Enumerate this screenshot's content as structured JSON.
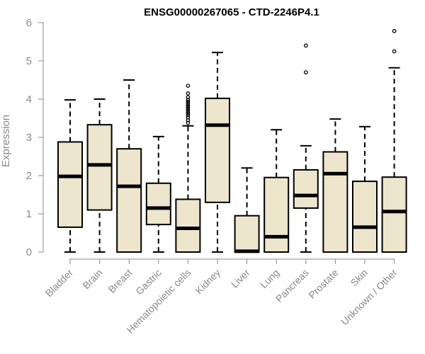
{
  "chart_data": {
    "type": "boxplot",
    "title": "ENSG00000267065 - CTD-2246P4.1",
    "xlabel": "",
    "ylabel": "Expression",
    "ylim": [
      0,
      6
    ],
    "yticks": [
      0,
      1,
      2,
      3,
      4,
      5,
      6
    ],
    "box_fill": "#ede6cc",
    "categories": [
      "Bladder",
      "Brain",
      "Breast",
      "Gastric",
      "Hematopoietic cells",
      "Kidney",
      "Liver",
      "Lung",
      "Pancreas",
      "Prostate",
      "Skin",
      "Unknown / Other"
    ],
    "boxes": [
      {
        "name": "Bladder",
        "whisker_low": 0,
        "q1": 0.65,
        "median": 1.98,
        "q3": 2.88,
        "whisker_high": 3.98,
        "outliers": []
      },
      {
        "name": "Brain",
        "whisker_low": 0,
        "q1": 1.1,
        "median": 2.28,
        "q3": 3.33,
        "whisker_high": 4.0,
        "outliers": []
      },
      {
        "name": "Breast",
        "whisker_low": 0,
        "q1": 0,
        "median": 1.72,
        "q3": 2.7,
        "whisker_high": 4.5,
        "outliers": []
      },
      {
        "name": "Gastric",
        "whisker_low": 0,
        "q1": 0.72,
        "median": 1.15,
        "q3": 1.8,
        "whisker_high": 3.02,
        "outliers": []
      },
      {
        "name": "Hematopoietic cells",
        "whisker_low": 0,
        "q1": 0,
        "median": 0.62,
        "q3": 1.38,
        "whisker_high": 3.3,
        "outliers": [
          3.38,
          3.45,
          3.52,
          3.58,
          3.63,
          3.68,
          3.73,
          3.78,
          3.83,
          3.88,
          3.93,
          3.98,
          4.05,
          4.15,
          4.35
        ]
      },
      {
        "name": "Kidney",
        "whisker_low": 0,
        "q1": 1.3,
        "median": 3.32,
        "q3": 4.02,
        "whisker_high": 5.22,
        "outliers": []
      },
      {
        "name": "Liver",
        "whisker_low": 0,
        "q1": 0,
        "median": 0.02,
        "q3": 0.95,
        "whisker_high": 2.2,
        "outliers": []
      },
      {
        "name": "Lung",
        "whisker_low": 0,
        "q1": 0,
        "median": 0.4,
        "q3": 1.95,
        "whisker_high": 3.2,
        "outliers": []
      },
      {
        "name": "Pancreas",
        "whisker_low": 0,
        "q1": 1.15,
        "median": 1.48,
        "q3": 2.15,
        "whisker_high": 2.78,
        "outliers": [
          4.7,
          5.4
        ]
      },
      {
        "name": "Prostate",
        "whisker_low": 0,
        "q1": 0,
        "median": 2.05,
        "q3": 2.62,
        "whisker_high": 3.48,
        "outliers": []
      },
      {
        "name": "Skin",
        "whisker_low": 0,
        "q1": 0,
        "median": 0.65,
        "q3": 1.85,
        "whisker_high": 3.28,
        "outliers": []
      },
      {
        "name": "Unknown / Other",
        "whisker_low": 0,
        "q1": 0,
        "median": 1.06,
        "q3": 1.96,
        "whisker_high": 4.82,
        "outliers": [
          5.25,
          5.78
        ]
      }
    ]
  }
}
